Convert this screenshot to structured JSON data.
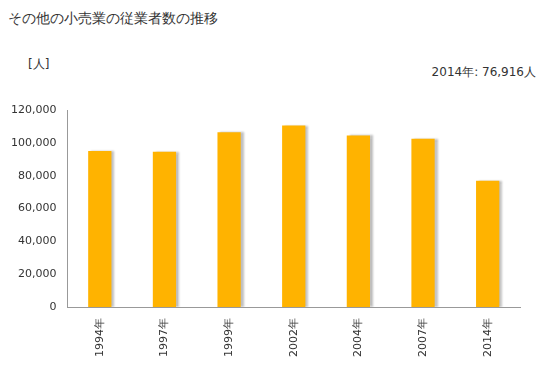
{
  "chart_data": {
    "type": "bar",
    "title": "その他の小売業の従業者数の推移",
    "ylabel": "[人]",
    "annotation": "2014年: 76,916人",
    "categories": [
      "1994年",
      "1997年",
      "1999年",
      "2002年",
      "2004年",
      "2007年",
      "2014年"
    ],
    "values": [
      95000,
      94500,
      106500,
      110500,
      104500,
      102500,
      76916
    ],
    "color": "#ffb300",
    "ylim": [
      0,
      120000
    ],
    "yticks": [
      0,
      {
        "value": 20000,
        "label": "20,000"
      },
      {
        "value": 40000,
        "label": "40,000"
      },
      {
        "value": 60000,
        "label": "60,000"
      },
      {
        "value": 80000,
        "label": "80,000"
      },
      {
        "value": 100000,
        "label": "100,000"
      },
      {
        "value": 120000,
        "label": "120,000"
      }
    ],
    "grid": false
  }
}
